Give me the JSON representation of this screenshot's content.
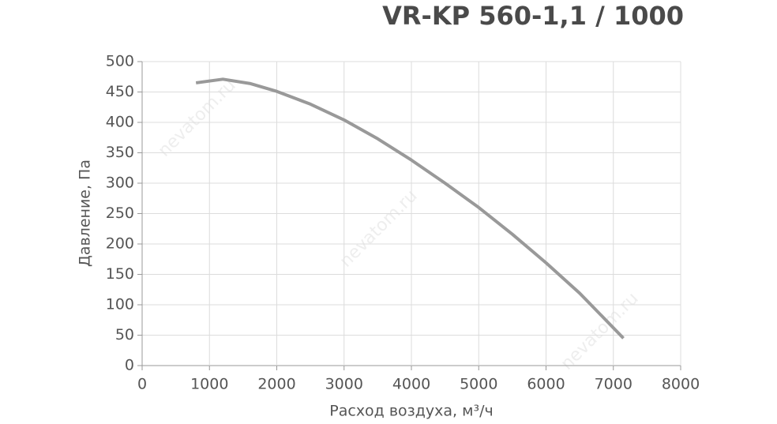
{
  "chart_data": {
    "type": "line",
    "title": "VR-KP 560-1,1 / 1000",
    "xlabel": "Расход воздуха, м³/ч",
    "ylabel": "Давление, Па",
    "watermark": "nevatom.ru",
    "x": [
      800,
      1200,
      1600,
      2000,
      2500,
      3000,
      3500,
      4000,
      4500,
      5000,
      5500,
      6000,
      6500,
      7150
    ],
    "series": [
      {
        "color": "#999999",
        "values": [
          465,
          471,
          464,
          451,
          430,
          404,
          373,
          338,
          300,
          260,
          216,
          169,
          119,
          45
        ]
      }
    ],
    "xlim": [
      0,
      8000
    ],
    "xticks": [
      0,
      1000,
      2000,
      3000,
      4000,
      5000,
      6000,
      7000,
      8000
    ],
    "ylim": [
      0,
      500
    ],
    "yticks": [
      0,
      50,
      100,
      150,
      200,
      250,
      300,
      350,
      400,
      450,
      500
    ],
    "grid": true
  }
}
